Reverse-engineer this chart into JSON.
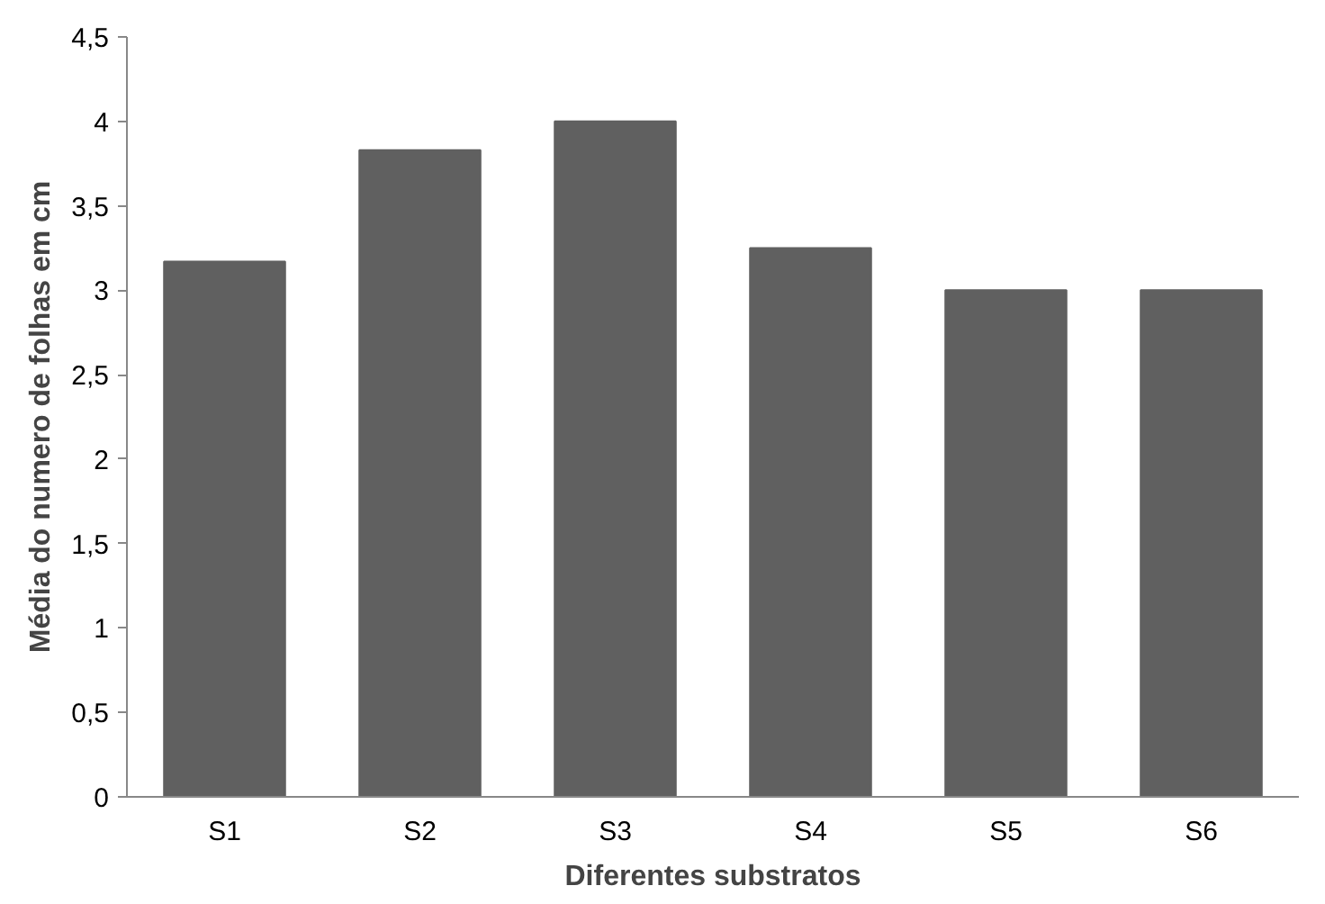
{
  "chart_data": {
    "type": "bar",
    "xlabel": "Diferentes substratos",
    "ylabel": "Média do numero de folhas em cm",
    "categories": [
      "S1",
      "S2",
      "S3",
      "S4",
      "S5",
      "S6"
    ],
    "values": [
      3.17,
      3.83,
      4.0,
      3.25,
      3.0,
      3.0
    ],
    "color": "#606060",
    "ylim": [
      0,
      4.5
    ],
    "yticks": [
      0,
      {
        "value": 0.5,
        "label": "0,5"
      },
      1,
      {
        "value": 1.5,
        "label": "1,5"
      },
      2,
      {
        "value": 2.5,
        "label": "2,5"
      },
      3,
      {
        "value": 3.5,
        "label": "3,5"
      },
      4,
      {
        "value": 4.5,
        "label": "4,5"
      }
    ],
    "grid": false
  }
}
